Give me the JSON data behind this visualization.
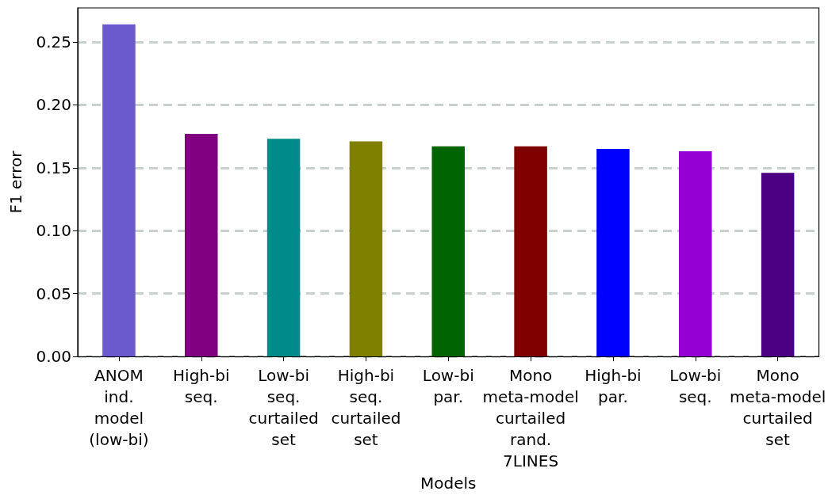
{
  "chart_data": {
    "type": "bar",
    "xlabel": "Models",
    "ylabel": "F1 error",
    "categories": [
      "ANOM\nind.\nmodel\n(low-bi)",
      "High-bi\nseq.",
      "Low-bi\nseq.\ncurtailed\nset",
      "High-bi\nseq.\ncurtailed\nset",
      "Low-bi\npar.",
      "Mono\nmeta-model\ncurtailed\nrand.\n7LINES",
      "High-bi\npar.",
      "Low-bi\nseq.",
      "Mono\nmeta-model\ncurtailed\nset"
    ],
    "values": [
      0.264,
      0.177,
      0.173,
      0.171,
      0.167,
      0.167,
      0.165,
      0.163,
      0.146
    ],
    "colors": [
      "#6a5acd",
      "#800080",
      "#008b8b",
      "#808000",
      "#006400",
      "#800000",
      "#0000ff",
      "#9400d3",
      "#4b0082"
    ],
    "ylim": [
      0,
      0.277
    ],
    "yticks": [
      {
        "value": 0,
        "label": "0.00"
      },
      0.05,
      {
        "value": 0.1,
        "label": "0.10"
      },
      0.15,
      {
        "value": 0.2,
        "label": "0.20"
      },
      0.25
    ],
    "grid": "y"
  }
}
